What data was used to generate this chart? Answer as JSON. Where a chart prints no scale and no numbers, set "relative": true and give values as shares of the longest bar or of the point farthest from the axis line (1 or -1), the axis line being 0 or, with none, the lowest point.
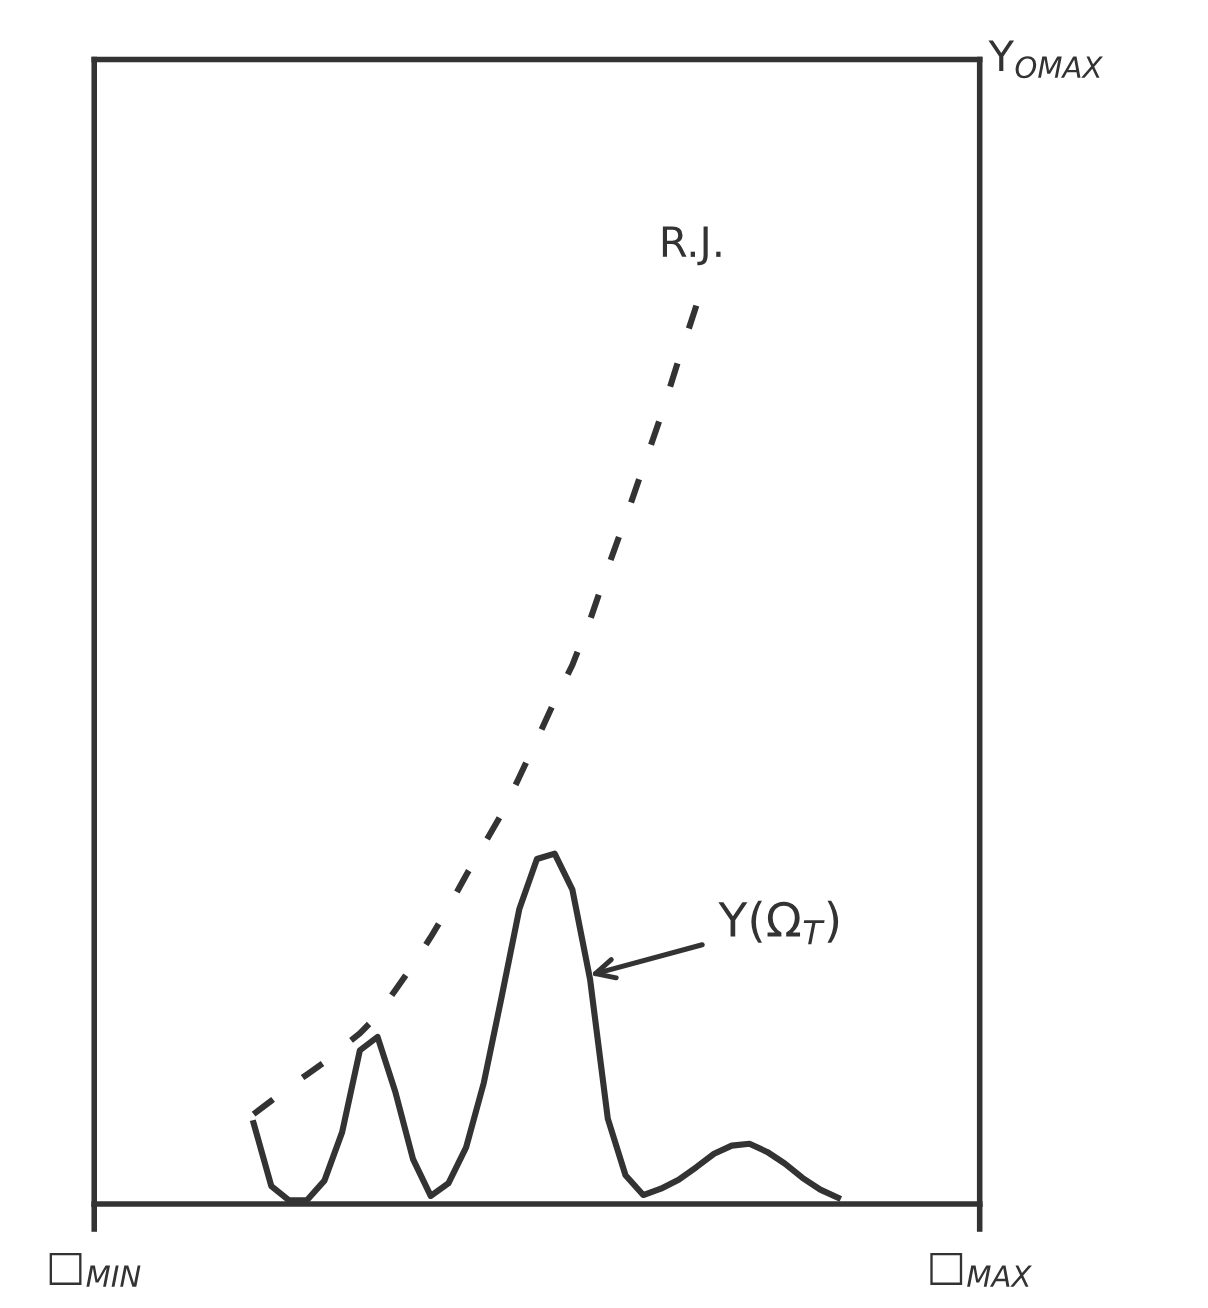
{
  "chart_data": {
    "type": "line",
    "relative": true,
    "categories": [
      "□$_{MIN}$",
      null,
      null,
      null,
      null,
      null,
      null,
      null,
      null,
      null,
      null,
      null,
      null,
      null,
      null,
      null,
      null,
      null,
      null,
      null,
      null,
      null,
      null,
      null,
      null,
      null,
      null,
      null,
      null,
      null,
      null,
      null,
      null,
      null,
      null,
      null,
      null,
      null,
      null,
      null,
      null,
      null,
      null,
      null,
      null,
      null,
      null,
      null,
      null,
      null,
      "□$_{MAX}$"
    ],
    "series": [
      {
        "color": "#333333",
        "line_style": "solid",
        "values": [
          null,
          null,
          null,
          null,
          null,
          null,
          null,
          null,
          null,
          0.09,
          0.02,
          0.004,
          0.004,
          0.026,
          0.08,
          0.171,
          0.186,
          0.125,
          0.05,
          0.009,
          0.023,
          0.063,
          0.135,
          0.23,
          0.328,
          0.384,
          0.39,
          0.35,
          0.25,
          0.095,
          0.032,
          0.01,
          0.017,
          0.027,
          0.041,
          0.056,
          0.065,
          0.067,
          0.058,
          0.045,
          0.029,
          0.016,
          0.007,
          null,
          null,
          null,
          null,
          null,
          null,
          null,
          null
        ]
      },
      {
        "color": "#333333",
        "line_style": "dashed",
        "values": [
          null,
          null,
          null,
          null,
          null,
          null,
          null,
          null,
          null,
          0.1,
          0.115,
          0.13,
          0.144,
          0.158,
          0.174,
          0.19,
          0.21,
          0.238,
          0.266,
          0.297,
          0.33,
          0.366,
          0.4,
          0.434,
          0.475,
          0.517,
          0.56,
          0.6,
          0.65,
          0.708,
          0.763,
          0.82,
          0.877,
          0.94,
          1.0,
          null,
          null,
          null,
          null,
          null,
          null,
          null,
          null,
          null,
          null,
          null,
          null,
          null,
          null,
          null,
          null
        ]
      }
    ],
    "annotations": [
      "R.J.",
      "Y(Ω$_{T}$)",
      "Y$_{OMAX}$"
    ]
  }
}
